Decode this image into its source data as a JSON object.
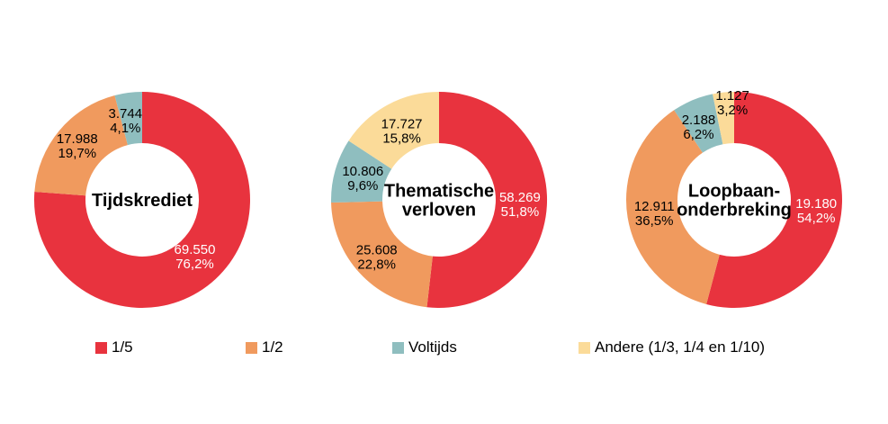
{
  "colors": {
    "red": "#E8333E",
    "orange": "#F09A5E",
    "teal": "#8FBEBF",
    "cream": "#FBDB99",
    "label_dark": "#000000",
    "label_light": "#FFFFFF"
  },
  "legend": {
    "position": "bottom",
    "items": [
      {
        "key": "red",
        "label": "1/5"
      },
      {
        "key": "orange",
        "label": "1/2"
      },
      {
        "key": "teal",
        "label": "Voltijds"
      },
      {
        "key": "cream",
        "label": "Andere (1/3, 1/4 en 1/10)"
      }
    ]
  },
  "chart_data": [
    {
      "type": "pie",
      "subtype": "donut",
      "title": "Tijdskrediet",
      "title_lines": [
        "Tijdskrediet"
      ],
      "start_angle_deg": 0,
      "direction": "clockwise",
      "slices": [
        {
          "category": "1/5",
          "color": "red",
          "value": "69.550",
          "pct": "76,2%",
          "share": 76.2,
          "label_color": "#FFFFFF",
          "label_r": 86
        },
        {
          "category": "1/2",
          "color": "orange",
          "value": "17.988",
          "pct": "19,7%",
          "share": 19.7,
          "label_color": "#000000",
          "label_r": 94
        },
        {
          "category": "Voltijds",
          "color": "teal",
          "value": "3.744",
          "pct": "4,1%",
          "share": 4.1,
          "label_color": "#000000",
          "label_r": 90,
          "label_angle": 348
        }
      ]
    },
    {
      "type": "pie",
      "subtype": "donut",
      "title": "Thematische verloven",
      "title_lines": [
        "Thematische",
        "verloven"
      ],
      "start_angle_deg": 0,
      "direction": "clockwise",
      "slices": [
        {
          "category": "1/5",
          "color": "red",
          "value": "58.269",
          "pct": "51,8%",
          "share": 51.8,
          "label_color": "#FFFFFF",
          "label_r": 90
        },
        {
          "category": "1/2",
          "color": "orange",
          "value": "25.608",
          "pct": "22,8%",
          "share": 22.8,
          "label_color": "#000000",
          "label_r": 94
        },
        {
          "category": "Voltijds",
          "color": "teal",
          "value": "10.806",
          "pct": "9,6%",
          "share": 9.6,
          "label_color": "#000000",
          "label_r": 88
        },
        {
          "category": "Andere (1/3, 1/4 en 1/10)",
          "color": "cream",
          "value": "17.727",
          "pct": "15,8%",
          "share": 15.8,
          "label_color": "#000000",
          "label_r": 87
        }
      ]
    },
    {
      "type": "pie",
      "subtype": "donut",
      "title": "Loopbaan-onderbreking",
      "title_lines": [
        "Loopbaan-",
        "onderbreking"
      ],
      "start_angle_deg": 0,
      "direction": "clockwise",
      "slices": [
        {
          "category": "1/5",
          "color": "red",
          "value": "19.180",
          "pct": "54,2%",
          "share": 54.2,
          "label_color": "#FFFFFF",
          "label_r": 92
        },
        {
          "category": "1/2",
          "color": "orange",
          "value": "12.911",
          "pct": "36,5%",
          "share": 36.5,
          "label_color": "#000000",
          "label_r": 90
        },
        {
          "category": "Voltijds",
          "color": "teal",
          "value": "2.188",
          "pct": "6,2%",
          "share": 6.2,
          "label_color": "#000000",
          "label_r": 90,
          "label_angle": 334
        },
        {
          "category": "Andere (1/3, 1/4 en 1/10)",
          "color": "cream",
          "value": "1.127",
          "pct": "3,2%",
          "share": 3.2,
          "label_color": "#000000",
          "label_r": 108,
          "label_angle": 359
        }
      ]
    }
  ]
}
